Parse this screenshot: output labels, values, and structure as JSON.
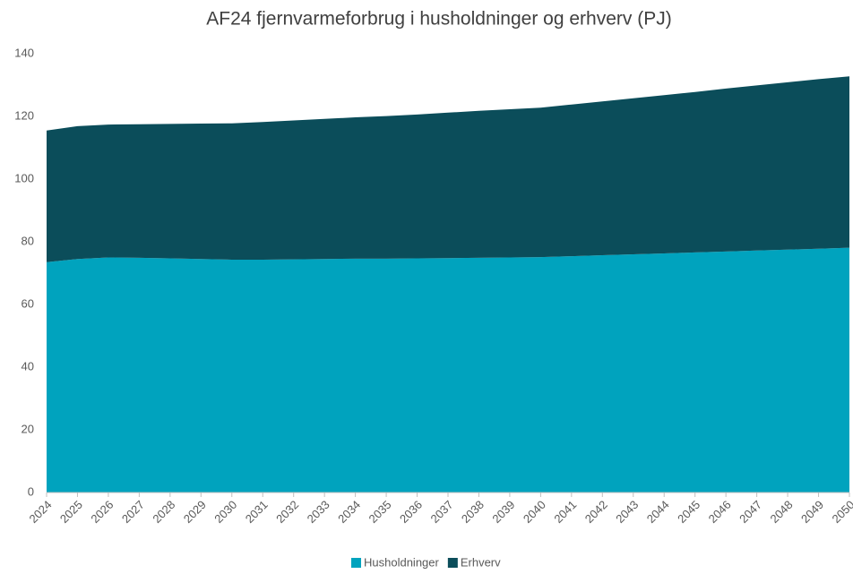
{
  "chart_data": {
    "type": "stacked_area",
    "title": "AF24 fjernvarmeforbrug i husholdninger og erhverv (PJ)",
    "categories": [
      "2024",
      "2025",
      "2026",
      "2027",
      "2028",
      "2029",
      "2030",
      "2031",
      "2032",
      "2033",
      "2034",
      "2035",
      "2036",
      "2037",
      "2038",
      "2039",
      "2040",
      "2041",
      "2042",
      "2043",
      "2044",
      "2045",
      "2046",
      "2047",
      "2048",
      "2049",
      "2050"
    ],
    "series": [
      {
        "name": "Husholdninger",
        "color": "#00a3be",
        "values": [
          73.5,
          74.5,
          75.0,
          74.9,
          74.7,
          74.5,
          74.3,
          74.3,
          74.4,
          74.5,
          74.6,
          74.6,
          74.7,
          74.8,
          74.9,
          75.0,
          75.1,
          75.4,
          75.7,
          76.0,
          76.3,
          76.6,
          76.9,
          77.2,
          77.5,
          77.8,
          78.1
        ]
      },
      {
        "name": "Erhverv",
        "color": "#0b4d5a",
        "values": [
          42.0,
          42.4,
          42.4,
          42.6,
          42.9,
          43.2,
          43.5,
          43.9,
          44.3,
          44.7,
          45.1,
          45.5,
          45.9,
          46.4,
          46.9,
          47.3,
          47.7,
          48.4,
          49.1,
          49.8,
          50.5,
          51.2,
          52.0,
          52.7,
          53.4,
          54.1,
          54.7
        ]
      }
    ],
    "ylim": [
      0,
      140
    ],
    "yticks": [
      0,
      20,
      40,
      60,
      80,
      100,
      120,
      140
    ],
    "grid": false,
    "legend": "bottom"
  }
}
